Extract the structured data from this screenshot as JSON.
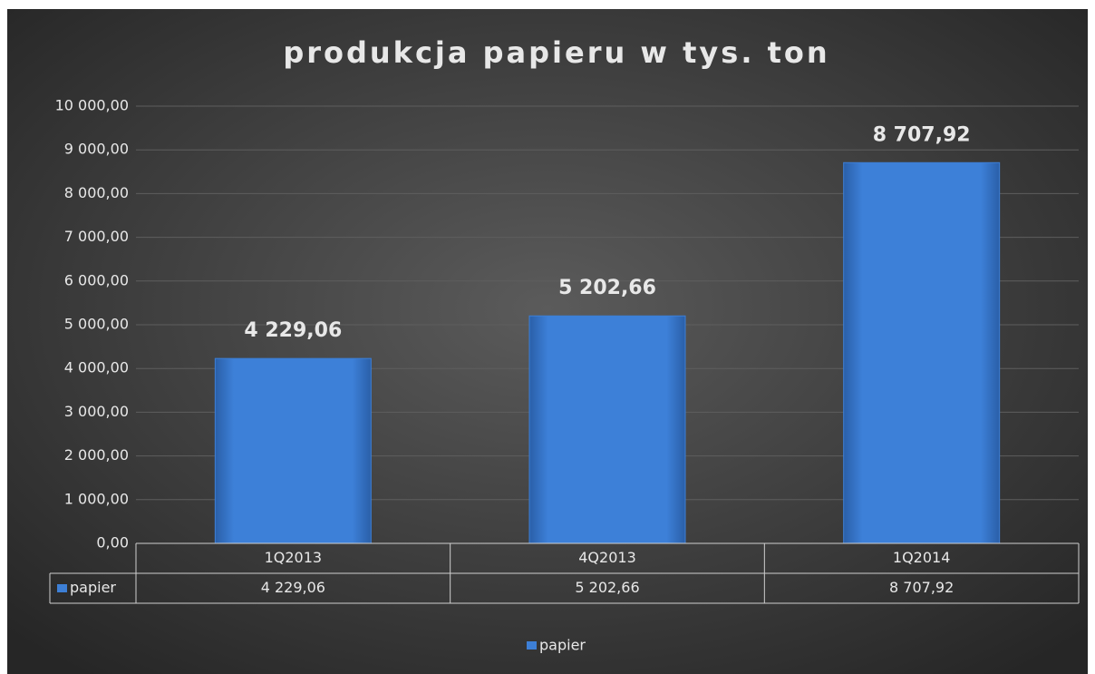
{
  "chart_data": {
    "type": "bar",
    "title": "produkcja papieru w tys. ton",
    "categories": [
      "1Q2013",
      "4Q2013",
      "1Q2014"
    ],
    "series": [
      {
        "name": "papier",
        "color": "#3d7fd6",
        "values": [
          4229.06,
          5202.66,
          8707.92
        ],
        "value_labels": [
          "4 229,06",
          "5 202,66",
          "8 707,92"
        ]
      }
    ],
    "ylim": [
      0,
      10000
    ],
    "yticks": [
      {
        "value": 0,
        "label": "0,00"
      },
      {
        "value": 1000,
        "label": "1 000,00"
      },
      {
        "value": 2000,
        "label": "2 000,00"
      },
      {
        "value": 3000,
        "label": "3 000,00"
      },
      {
        "value": 4000,
        "label": "4 000,00"
      },
      {
        "value": 5000,
        "label": "5 000,00"
      },
      {
        "value": 6000,
        "label": "6 000,00"
      },
      {
        "value": 7000,
        "label": "7 000,00"
      },
      {
        "value": 8000,
        "label": "8 000,00"
      },
      {
        "value": 9000,
        "label": "9 000,00"
      },
      {
        "value": 10000,
        "label": "10 000,00"
      }
    ],
    "grid": true,
    "legend": "bottom",
    "data_table": true
  }
}
